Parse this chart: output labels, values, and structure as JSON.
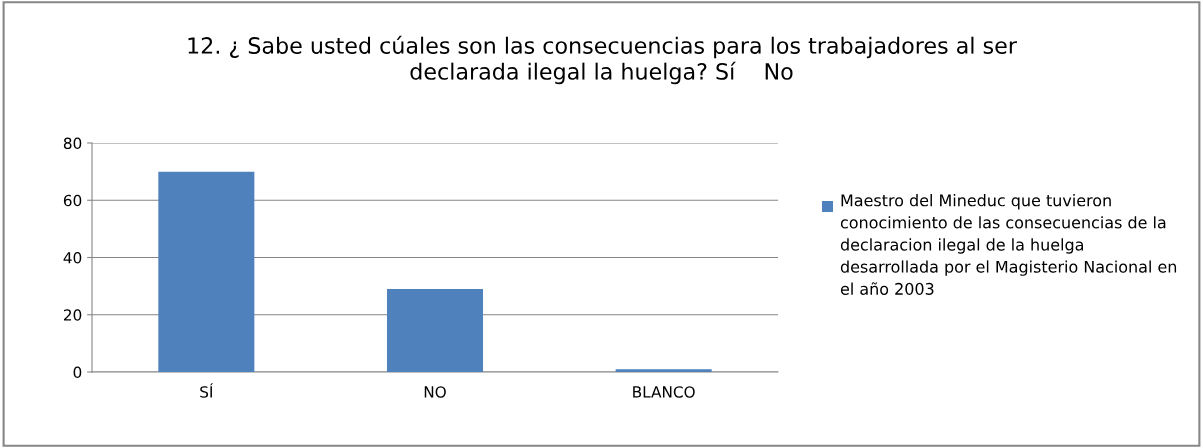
{
  "chart_data": {
    "type": "bar",
    "title": "12. ¿ Sabe usted cúales son las consecuencias para los trabajadores al ser declarada ilegal la huelga? Sí    No",
    "categories": [
      "SÍ",
      "NO",
      "BLANCO"
    ],
    "series": [
      {
        "name": "Maestro del Mineduc que tuvieron conocimiento de las consecuencias de la declaracion ilegal de la huelga desarrollada por el Magisterio Nacional en el año 2003",
        "color": "#4f81bd",
        "values": [
          70,
          29,
          1
        ]
      }
    ],
    "ylim": [
      0,
      80
    ],
    "yticks": [
      0,
      20,
      40,
      60,
      80
    ],
    "grid": "y",
    "legend": "right"
  }
}
